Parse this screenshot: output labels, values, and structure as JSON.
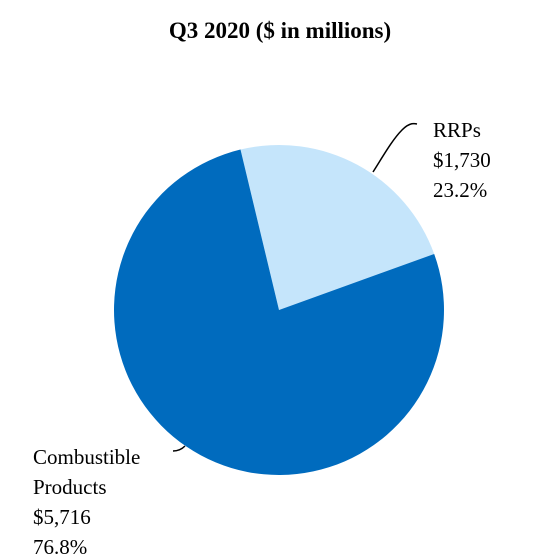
{
  "chart_data": {
    "type": "pie",
    "title": "Q3 2020 ($ in millions)",
    "slices": [
      {
        "label_lines": [
          "RRPs"
        ],
        "value": 1730,
        "value_label": "$1,730",
        "percent": 23.2,
        "percent_label": "23.2%",
        "color": "#c5e5fb"
      },
      {
        "label_lines": [
          "Combustible",
          "Products"
        ],
        "value": 5716,
        "value_label": "$5,716",
        "percent": 76.8,
        "percent_label": "76.8%",
        "color": "#006bbe"
      }
    ],
    "legend": "none (slices labeled with leader lines)"
  }
}
